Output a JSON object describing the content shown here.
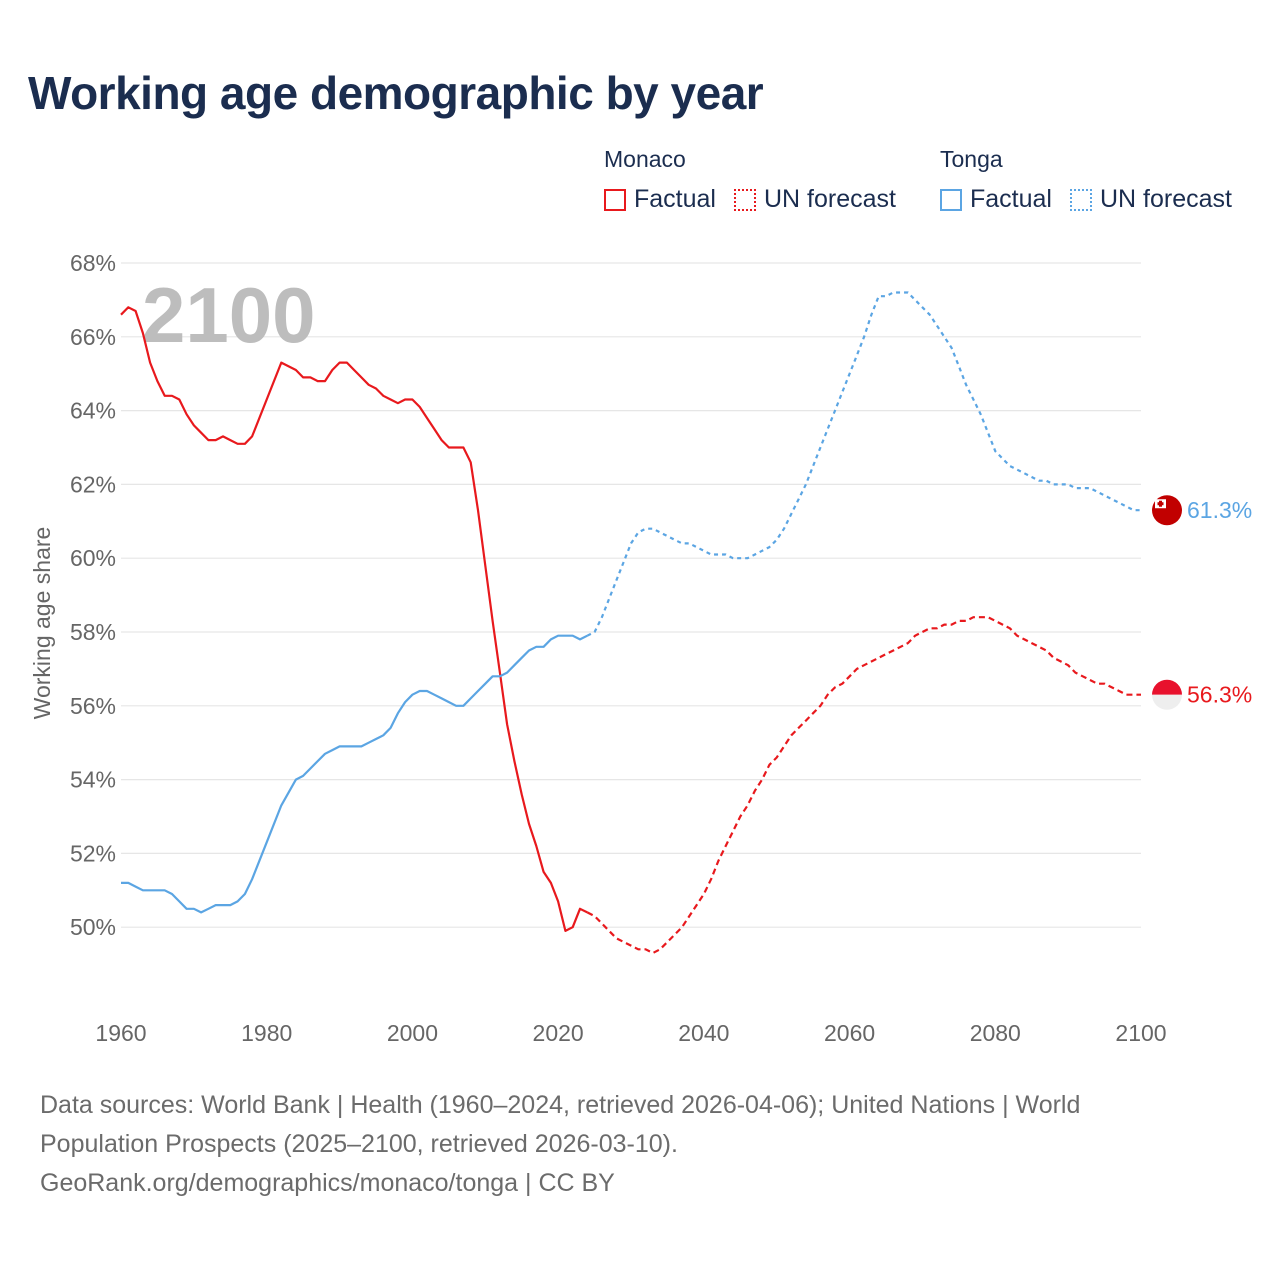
{
  "title": "Working age demographic by year",
  "legend": {
    "groups": [
      {
        "country": "Monaco",
        "factual": "Factual",
        "forecast": "UN forecast"
      },
      {
        "country": "Tonga",
        "factual": "Factual",
        "forecast": "UN forecast"
      }
    ]
  },
  "colors": {
    "monaco": "#e8191d",
    "tonga": "#5ba5e3",
    "grid": "#e6e6e6",
    "axis_text": "#666666",
    "year_watermark": "#bdbdbd"
  },
  "chart_data": {
    "type": "line",
    "title": "Working age demographic by year",
    "xlabel": "",
    "ylabel": "Working age share",
    "xlim": [
      1960,
      2100
    ],
    "ylim": [
      48,
      68
    ],
    "x_ticks": [
      1960,
      1980,
      2000,
      2020,
      2040,
      2060,
      2080,
      2100
    ],
    "x_tick_labels": [
      "1960",
      "1980",
      "2000",
      "2020",
      "2040",
      "2060",
      "2080",
      "2100"
    ],
    "y_ticks": [
      50,
      52,
      54,
      56,
      58,
      60,
      62,
      64,
      66,
      68
    ],
    "y_tick_labels": [
      "50%",
      "52%",
      "54%",
      "56%",
      "58%",
      "60%",
      "62%",
      "64%",
      "66%",
      "68%"
    ],
    "year_label": "2100",
    "series": [
      {
        "name": "Monaco",
        "color": "#e8191d",
        "end_label": "56.3%",
        "factual": {
          "x": [
            1960,
            1961,
            1962,
            1963,
            1964,
            1965,
            1966,
            1967,
            1968,
            1969,
            1970,
            1971,
            1972,
            1973,
            1974,
            1975,
            1976,
            1977,
            1978,
            1980,
            1982,
            1984,
            1985,
            1986,
            1987,
            1988,
            1989,
            1990,
            1991,
            1992,
            1993,
            1994,
            1995,
            1996,
            1997,
            1998,
            1999,
            2000,
            2001,
            2002,
            2003,
            2004,
            2005,
            2006,
            2007,
            2008,
            2009,
            2010,
            2011,
            2012,
            2013,
            2014,
            2015,
            2016,
            2017,
            2018,
            2019,
            2020,
            2021,
            2022,
            2023,
            2024
          ],
          "y": [
            66.6,
            66.8,
            66.7,
            66.1,
            65.3,
            64.8,
            64.4,
            64.4,
            64.3,
            63.9,
            63.6,
            63.4,
            63.2,
            63.2,
            63.3,
            63.2,
            63.1,
            63.1,
            63.3,
            64.3,
            65.3,
            65.1,
            64.9,
            64.9,
            64.8,
            64.8,
            65.1,
            65.3,
            65.3,
            65.1,
            64.9,
            64.7,
            64.6,
            64.4,
            64.3,
            64.2,
            64.3,
            64.3,
            64.1,
            63.8,
            63.5,
            63.2,
            63.0,
            63.0,
            63.0,
            62.6,
            61.3,
            59.8,
            58.3,
            56.9,
            55.5,
            54.5,
            53.6,
            52.8,
            52.2,
            51.5,
            51.2,
            50.7,
            49.9,
            50.0,
            50.5,
            50.4
          ]
        },
        "forecast": {
          "x": [
            2024,
            2025,
            2026,
            2027,
            2028,
            2029,
            2030,
            2031,
            2032,
            2033,
            2034,
            2035,
            2036,
            2037,
            2038,
            2039,
            2040,
            2041,
            2042,
            2043,
            2044,
            2045,
            2046,
            2047,
            2048,
            2049,
            2050,
            2051,
            2052,
            2053,
            2054,
            2055,
            2056,
            2057,
            2058,
            2059,
            2060,
            2061,
            2062,
            2063,
            2064,
            2065,
            2066,
            2067,
            2068,
            2069,
            2070,
            2071,
            2072,
            2073,
            2074,
            2075,
            2076,
            2077,
            2078,
            2079,
            2080,
            2081,
            2082,
            2083,
            2084,
            2085,
            2086,
            2087,
            2088,
            2089,
            2090,
            2091,
            2092,
            2093,
            2094,
            2095,
            2096,
            2097,
            2098,
            2099,
            2100
          ],
          "y": [
            50.4,
            50.3,
            50.1,
            49.9,
            49.7,
            49.6,
            49.5,
            49.4,
            49.4,
            49.3,
            49.4,
            49.6,
            49.8,
            50.0,
            50.3,
            50.6,
            50.9,
            51.3,
            51.8,
            52.2,
            52.6,
            53.0,
            53.3,
            53.7,
            54.0,
            54.4,
            54.6,
            54.9,
            55.2,
            55.4,
            55.6,
            55.8,
            56.0,
            56.3,
            56.5,
            56.6,
            56.8,
            57.0,
            57.1,
            57.2,
            57.3,
            57.4,
            57.5,
            57.6,
            57.7,
            57.9,
            58.0,
            58.1,
            58.1,
            58.2,
            58.2,
            58.3,
            58.3,
            58.4,
            58.4,
            58.4,
            58.3,
            58.2,
            58.1,
            57.9,
            57.8,
            57.7,
            57.6,
            57.5,
            57.3,
            57.2,
            57.1,
            56.9,
            56.8,
            56.7,
            56.6,
            56.6,
            56.5,
            56.4,
            56.3,
            56.3,
            56.3
          ]
        }
      },
      {
        "name": "Tonga",
        "color": "#5ba5e3",
        "end_label": "61.3%",
        "factual": {
          "x": [
            1960,
            1961,
            1962,
            1963,
            1964,
            1965,
            1966,
            1967,
            1968,
            1969,
            1970,
            1971,
            1972,
            1973,
            1974,
            1975,
            1976,
            1977,
            1978,
            1980,
            1982,
            1984,
            1985,
            1986,
            1987,
            1988,
            1989,
            1990,
            1991,
            1992,
            1993,
            1994,
            1995,
            1996,
            1997,
            1998,
            1999,
            2000,
            2001,
            2002,
            2003,
            2004,
            2005,
            2006,
            2007,
            2008,
            2009,
            2010,
            2011,
            2012,
            2013,
            2014,
            2015,
            2016,
            2017,
            2018,
            2019,
            2020,
            2021,
            2022,
            2023,
            2024
          ],
          "y": [
            51.2,
            51.2,
            51.1,
            51.0,
            51.0,
            51.0,
            51.0,
            50.9,
            50.7,
            50.5,
            50.5,
            50.4,
            50.5,
            50.6,
            50.6,
            50.6,
            50.7,
            50.9,
            51.3,
            52.3,
            53.3,
            54.0,
            54.1,
            54.3,
            54.5,
            54.7,
            54.8,
            54.9,
            54.9,
            54.9,
            54.9,
            55.0,
            55.1,
            55.2,
            55.4,
            55.8,
            56.1,
            56.3,
            56.4,
            56.4,
            56.3,
            56.2,
            56.1,
            56.0,
            56.0,
            56.2,
            56.4,
            56.6,
            56.8,
            56.8,
            56.9,
            57.1,
            57.3,
            57.5,
            57.6,
            57.6,
            57.8,
            57.9,
            57.9,
            57.9,
            57.8,
            57.9
          ]
        },
        "forecast": {
          "x": [
            2024,
            2025,
            2026,
            2027,
            2028,
            2029,
            2030,
            2031,
            2032,
            2033,
            2034,
            2035,
            2036,
            2037,
            2038,
            2039,
            2040,
            2041,
            2042,
            2043,
            2044,
            2045,
            2046,
            2047,
            2048,
            2049,
            2050,
            2051,
            2052,
            2053,
            2054,
            2055,
            2056,
            2057,
            2058,
            2059,
            2060,
            2061,
            2062,
            2063,
            2064,
            2065,
            2066,
            2067,
            2068,
            2069,
            2070,
            2071,
            2072,
            2073,
            2074,
            2075,
            2076,
            2077,
            2078,
            2079,
            2080,
            2081,
            2082,
            2083,
            2084,
            2085,
            2086,
            2087,
            2088,
            2089,
            2090,
            2091,
            2092,
            2093,
            2094,
            2095,
            2096,
            2097,
            2098,
            2099,
            2100
          ],
          "y": [
            57.9,
            58.0,
            58.4,
            58.9,
            59.4,
            59.9,
            60.4,
            60.7,
            60.8,
            60.8,
            60.7,
            60.6,
            60.5,
            60.4,
            60.4,
            60.3,
            60.2,
            60.1,
            60.1,
            60.1,
            60.0,
            60.0,
            60.0,
            60.1,
            60.2,
            60.3,
            60.5,
            60.8,
            61.2,
            61.6,
            62.0,
            62.5,
            63.0,
            63.5,
            64.0,
            64.5,
            65.0,
            65.5,
            66.0,
            66.6,
            67.1,
            67.1,
            67.2,
            67.2,
            67.2,
            67.0,
            66.8,
            66.6,
            66.3,
            66.0,
            65.7,
            65.2,
            64.7,
            64.3,
            63.9,
            63.4,
            62.9,
            62.7,
            62.5,
            62.4,
            62.3,
            62.2,
            62.1,
            62.1,
            62.0,
            62.0,
            62.0,
            61.9,
            61.9,
            61.9,
            61.8,
            61.7,
            61.6,
            61.5,
            61.4,
            61.3,
            61.3
          ]
        }
      }
    ]
  },
  "footer": {
    "line1": "Data sources: World Bank | Health (1960–2024, retrieved 2026-04-06); United Nations | World",
    "line2": "Population Prospects (2025–2100, retrieved 2026-03-10).",
    "line3": "GeoRank.org/demographics/monaco/tonga | CC BY"
  }
}
